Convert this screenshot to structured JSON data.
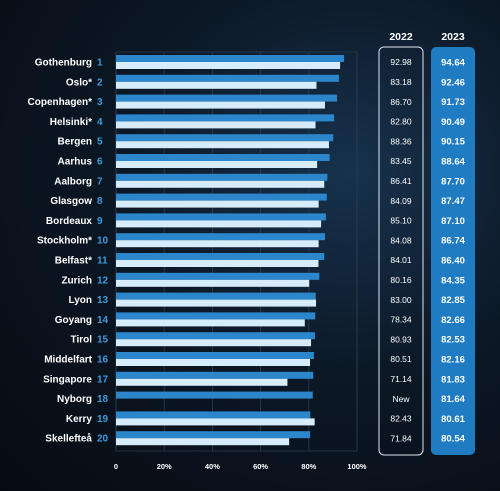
{
  "chart_data": {
    "type": "bar",
    "orientation": "horizontal",
    "categories": [
      "Gothenburg",
      "Oslo*",
      "Copenhagen*",
      "Helsinki*",
      "Bergen",
      "Aarhus",
      "Aalborg",
      "Glasgow",
      "Bordeaux",
      "Stockholm*",
      "Belfast*",
      "Zurich",
      "Lyon",
      "Goyang",
      "Tirol",
      "Middelfart",
      "Singapore",
      "Nyborg",
      "Kerry",
      "Skellefteå"
    ],
    "ranks": [
      "1",
      "2",
      "3",
      "4",
      "5",
      "6",
      "7",
      "8",
      "9",
      "10",
      "11",
      "12",
      "13",
      "14",
      "15",
      "16",
      "17",
      "18",
      "19",
      "20"
    ],
    "series": [
      {
        "name": "2023",
        "values": [
          94.64,
          92.46,
          91.73,
          90.49,
          90.15,
          88.64,
          87.7,
          87.47,
          87.1,
          86.74,
          86.4,
          84.35,
          82.85,
          82.66,
          82.53,
          82.16,
          81.83,
          81.64,
          80.61,
          80.54
        ],
        "color": "#2b86cc"
      },
      {
        "name": "2022",
        "values": [
          92.98,
          83.18,
          86.7,
          82.8,
          88.36,
          83.45,
          86.41,
          84.09,
          85.1,
          84.08,
          84.01,
          80.16,
          83.0,
          78.34,
          80.93,
          80.51,
          71.14,
          null,
          82.43,
          71.84
        ],
        "color": "#d6ecfb"
      }
    ],
    "table_2022": [
      "92.98",
      "83.18",
      "86.70",
      "82.80",
      "88.36",
      "83.45",
      "86.41",
      "84.09",
      "85.10",
      "84.08",
      "84.01",
      "80.16",
      "83.00",
      "78.34",
      "80.93",
      "80.51",
      "71.14",
      "New",
      "82.43",
      "71.84"
    ],
    "table_2023": [
      "94.64",
      "92.46",
      "91.73",
      "90.49",
      "90.15",
      "88.64",
      "87.70",
      "87.47",
      "87.10",
      "86.74",
      "86.40",
      "84.35",
      "82.85",
      "82.66",
      "82.53",
      "82.16",
      "81.83",
      "81.64",
      "80.61",
      "80.54"
    ],
    "column_headers": [
      "2022",
      "2023"
    ],
    "x_ticks": [
      "0",
      "20%",
      "40%",
      "60%",
      "80%",
      "100%"
    ],
    "xlim": [
      0,
      100
    ],
    "grid": true,
    "colors": {
      "accent": "#2b86cc",
      "light_bar": "#d6ecfb",
      "panel_2023": "#1f7cc2"
    }
  }
}
